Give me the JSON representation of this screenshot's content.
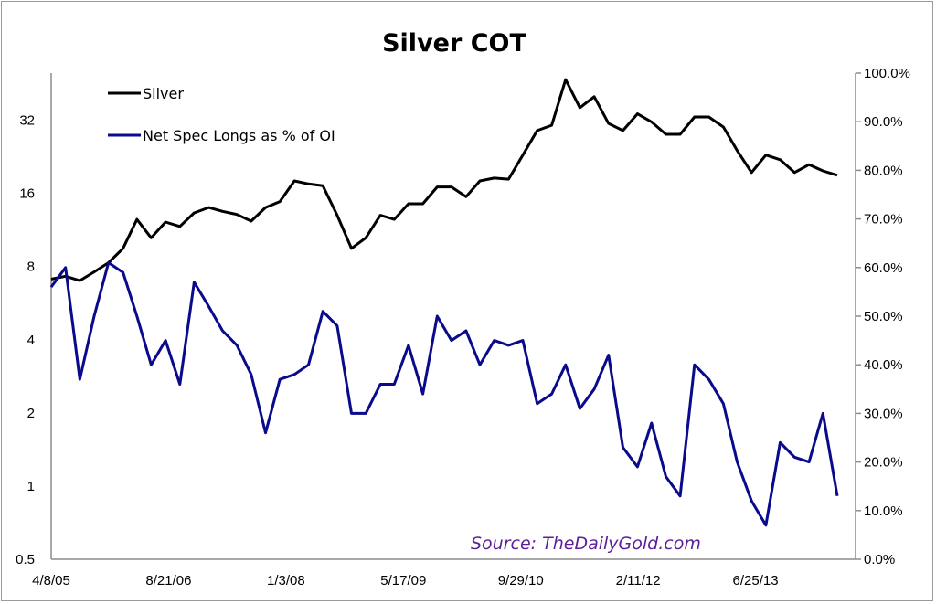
{
  "chart_data": {
    "type": "line",
    "title": "Silver COT",
    "annotation": "Source: TheDailyGold.com",
    "annotation_color": "#5a1f9a",
    "legend_placement": "top-left",
    "grid": false,
    "x_axis": {
      "type": "date",
      "range": [
        "2005-04-08",
        "2014-08-25"
      ],
      "tick_labels": [
        "4/8/05",
        "8/21/06",
        "1/3/08",
        "5/17/09",
        "9/29/10",
        "2/11/12",
        "6/25/13"
      ],
      "tick_dates": [
        "2005-04-08",
        "2006-08-21",
        "2008-01-03",
        "2009-05-17",
        "2010-09-29",
        "2012-02-11",
        "2013-06-25"
      ]
    },
    "y_left": {
      "scale": "log2",
      "range": [
        0.5,
        50
      ],
      "tick_labels": [
        "0.5",
        "1",
        "2",
        "4",
        "8",
        "16",
        "32"
      ],
      "tick_values": [
        0.5,
        1,
        2,
        4,
        8,
        16,
        32
      ]
    },
    "y_right": {
      "scale": "linear",
      "range": [
        0,
        100
      ],
      "tick_labels": [
        "0.0%",
        "10.0%",
        "20.0%",
        "30.0%",
        "40.0%",
        "50.0%",
        "60.0%",
        "70.0%",
        "80.0%",
        "90.0%",
        "100.0%"
      ],
      "tick_values": [
        0,
        10,
        20,
        30,
        40,
        50,
        60,
        70,
        80,
        90,
        100
      ]
    },
    "x": [
      "2005-04-08",
      "2005-06-08",
      "2005-08-08",
      "2005-10-08",
      "2005-12-08",
      "2006-02-08",
      "2006-04-08",
      "2006-06-08",
      "2006-08-08",
      "2006-10-08",
      "2006-12-08",
      "2007-02-08",
      "2007-04-08",
      "2007-06-08",
      "2007-08-08",
      "2007-10-08",
      "2007-12-08",
      "2008-02-08",
      "2008-04-08",
      "2008-06-08",
      "2008-08-08",
      "2008-10-08",
      "2008-12-08",
      "2009-02-08",
      "2009-04-08",
      "2009-06-08",
      "2009-08-08",
      "2009-10-08",
      "2009-12-08",
      "2010-02-08",
      "2010-04-08",
      "2010-06-08",
      "2010-08-08",
      "2010-10-08",
      "2010-12-08",
      "2011-02-08",
      "2011-04-08",
      "2011-06-08",
      "2011-08-08",
      "2011-10-08",
      "2011-12-08",
      "2012-02-08",
      "2012-04-08",
      "2012-06-08",
      "2012-08-08",
      "2012-10-08",
      "2012-12-08",
      "2013-02-08",
      "2013-04-08",
      "2013-06-08",
      "2013-08-08",
      "2013-10-08",
      "2013-12-08",
      "2014-02-08",
      "2014-04-08",
      "2014-06-08"
    ],
    "series": [
      {
        "name": "Silver",
        "axis": "left",
        "color": "#000000",
        "values": [
          7.1,
          7.3,
          7.0,
          7.6,
          8.3,
          9.5,
          12.5,
          10.5,
          12.2,
          11.7,
          13.3,
          14.0,
          13.5,
          13.1,
          12.3,
          14.0,
          14.8,
          18.0,
          17.5,
          17.2,
          13.0,
          9.5,
          10.5,
          13.0,
          12.5,
          14.5,
          14.5,
          17.0,
          17.0,
          15.5,
          18.0,
          18.5,
          18.3,
          23.0,
          29.0,
          30.5,
          47.0,
          36.0,
          40.0,
          31.0,
          29.0,
          34.0,
          31.5,
          28.0,
          28.0,
          33.0,
          33.0,
          30.0,
          24.0,
          19.5,
          23.0,
          22.0,
          19.5,
          21.0,
          19.8,
          19.0
        ]
      },
      {
        "name": "Net Spec Longs as % of OI",
        "axis": "right",
        "color": "#0a0a8c",
        "values": [
          56,
          60,
          37,
          50,
          61,
          59,
          50,
          40,
          45,
          36,
          57,
          52,
          47,
          44,
          38,
          26,
          37,
          38,
          40,
          51,
          48,
          30,
          30,
          36,
          36,
          44,
          34,
          50,
          45,
          47,
          40,
          45,
          44,
          45,
          32,
          34,
          40,
          31,
          35,
          42,
          23,
          19,
          28,
          17,
          13,
          40,
          37,
          32,
          20,
          12,
          7,
          24,
          21,
          20,
          30,
          13
        ]
      }
    ]
  }
}
